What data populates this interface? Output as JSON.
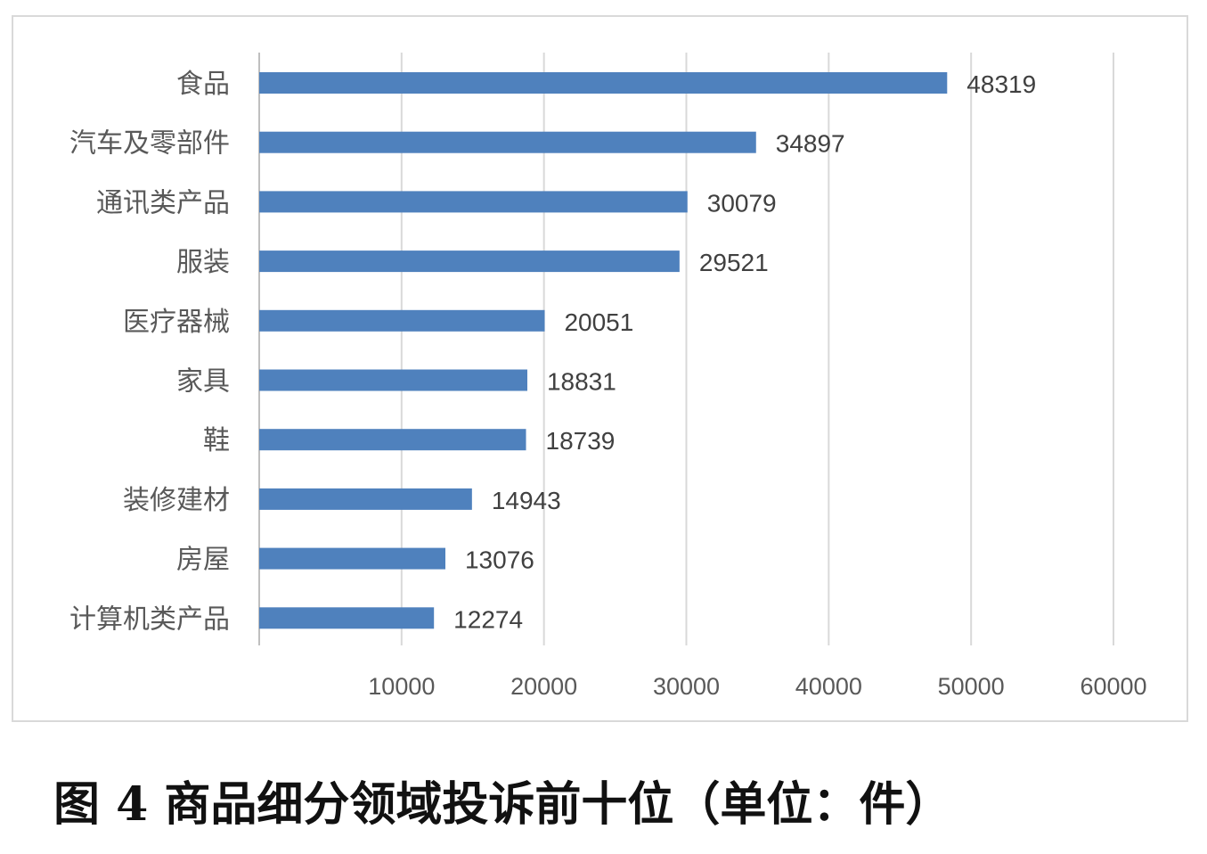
{
  "caption": "图 4 商品细分领域投诉前十位（单位：件）",
  "chart_data": {
    "type": "bar",
    "orientation": "horizontal",
    "categories": [
      "食品",
      "汽车及零部件",
      "通讯类产品",
      "服装",
      "医疗器械",
      "家具",
      "鞋",
      "装修建材",
      "房屋",
      "计算机类产品"
    ],
    "values": [
      48319,
      34897,
      30079,
      29521,
      20051,
      18831,
      18739,
      14943,
      13076,
      12274
    ],
    "x_ticks": [
      10000,
      20000,
      30000,
      40000,
      50000,
      60000
    ],
    "xlim": [
      0,
      60000
    ],
    "grid": true,
    "bar_color": "#4f81bd",
    "data_labels": true
  }
}
